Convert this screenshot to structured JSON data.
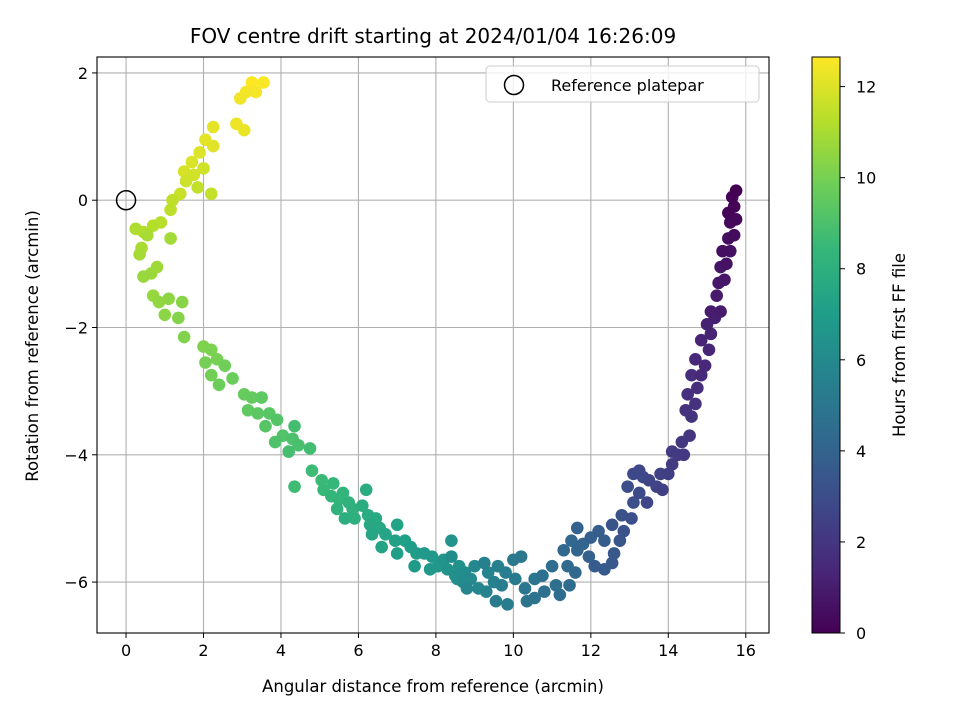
{
  "chart_data": {
    "type": "scatter",
    "title": "FOV centre drift starting at 2024/01/04 16:26:09",
    "xlabel": "Angular distance from reference (arcmin)",
    "ylabel": "Rotation from reference (arcmin)",
    "xlim": [
      -0.75,
      16.6
    ],
    "ylim": [
      -6.8,
      2.25
    ],
    "xticks": [
      0,
      2,
      4,
      6,
      8,
      10,
      12,
      14,
      16
    ],
    "yticks": [
      -6,
      -4,
      -2,
      0,
      2
    ],
    "grid": true,
    "legend": {
      "label": "Reference platepar",
      "placement": "top-right"
    },
    "reference_point": {
      "x": 0,
      "y": 0
    },
    "colorbar": {
      "label": "Hours from first FF file",
      "colormap": "viridis",
      "range": [
        0,
        12.65
      ],
      "ticks": [
        0,
        2,
        4,
        6,
        8,
        10,
        12
      ]
    },
    "colormap_stops": [
      "#440154",
      "#482878",
      "#3e4989",
      "#31688e",
      "#26828e",
      "#1f9e89",
      "#35b779",
      "#6ece58",
      "#b5de2b",
      "#fde725"
    ],
    "series": [
      {
        "columns": [
          "x",
          "y",
          "hours"
        ],
        "points": [
          [
            3.25,
            1.85
          ],
          [
            3.55,
            1.85
          ],
          [
            3.35,
            1.7
          ],
          [
            3.1,
            1.7
          ],
          [
            2.95,
            1.6
          ],
          [
            2.85,
            1.2
          ],
          [
            3.05,
            1.1
          ],
          [
            2.25,
            1.15
          ],
          [
            2.05,
            0.95
          ],
          [
            2.25,
            0.85
          ],
          [
            1.9,
            0.75
          ],
          [
            1.7,
            0.6
          ],
          [
            1.5,
            0.45
          ],
          [
            1.75,
            0.4
          ],
          [
            2.0,
            0.5
          ],
          [
            1.55,
            0.3
          ],
          [
            1.4,
            0.1
          ],
          [
            2.2,
            0.1
          ],
          [
            1.85,
            0.2
          ],
          [
            1.2,
            0.0
          ],
          [
            1.15,
            -0.15
          ],
          [
            0.9,
            -0.35
          ],
          [
            0.7,
            -0.4
          ],
          [
            0.45,
            -0.5
          ],
          [
            0.25,
            -0.45
          ],
          [
            0.4,
            -0.75
          ],
          [
            0.55,
            -0.55
          ],
          [
            0.35,
            -0.85
          ],
          [
            1.15,
            -0.6
          ],
          [
            0.8,
            -1.05
          ],
          [
            0.65,
            -1.15
          ],
          [
            0.45,
            -1.2
          ],
          [
            0.7,
            -1.5
          ],
          [
            0.85,
            -1.6
          ],
          [
            1.1,
            -1.55
          ],
          [
            1.0,
            -1.8
          ],
          [
            1.45,
            -1.6
          ],
          [
            1.35,
            -1.85
          ],
          [
            1.5,
            -2.15
          ],
          [
            2.0,
            -2.3
          ],
          [
            2.2,
            -2.35
          ],
          [
            2.35,
            -2.5
          ],
          [
            2.05,
            -2.55
          ],
          [
            2.2,
            -2.75
          ],
          [
            2.55,
            -2.6
          ],
          [
            2.4,
            -2.9
          ],
          [
            2.75,
            -2.8
          ],
          [
            3.05,
            -3.05
          ],
          [
            3.25,
            -3.1
          ],
          [
            3.15,
            -3.3
          ],
          [
            3.5,
            -3.1
          ],
          [
            3.4,
            -3.35
          ],
          [
            3.7,
            -3.35
          ],
          [
            3.6,
            -3.55
          ],
          [
            3.9,
            -3.45
          ],
          [
            4.05,
            -3.7
          ],
          [
            3.85,
            -3.8
          ],
          [
            4.3,
            -3.75
          ],
          [
            4.45,
            -3.85
          ],
          [
            4.2,
            -3.95
          ],
          [
            4.35,
            -3.55
          ],
          [
            4.75,
            -3.9
          ],
          [
            4.35,
            -4.5
          ],
          [
            4.8,
            -4.25
          ],
          [
            5.05,
            -4.4
          ],
          [
            5.1,
            -4.55
          ],
          [
            5.35,
            -4.45
          ],
          [
            5.3,
            -4.65
          ],
          [
            5.5,
            -4.7
          ],
          [
            5.6,
            -4.6
          ],
          [
            5.45,
            -4.85
          ],
          [
            5.75,
            -4.75
          ],
          [
            5.85,
            -4.85
          ],
          [
            5.9,
            -5.0
          ],
          [
            5.65,
            -5.0
          ],
          [
            6.1,
            -4.8
          ],
          [
            6.2,
            -4.55
          ],
          [
            6.25,
            -4.95
          ],
          [
            6.45,
            -5.0
          ],
          [
            6.3,
            -5.1
          ],
          [
            6.55,
            -5.15
          ],
          [
            6.35,
            -5.25
          ],
          [
            6.7,
            -5.25
          ],
          [
            6.6,
            -5.45
          ],
          [
            7.0,
            -5.1
          ],
          [
            6.95,
            -5.35
          ],
          [
            7.2,
            -5.35
          ],
          [
            7.0,
            -5.55
          ],
          [
            7.35,
            -5.45
          ],
          [
            7.5,
            -5.55
          ],
          [
            7.45,
            -5.75
          ],
          [
            7.7,
            -5.55
          ],
          [
            7.9,
            -5.6
          ],
          [
            7.85,
            -5.8
          ],
          [
            8.05,
            -5.75
          ],
          [
            8.2,
            -5.65
          ],
          [
            8.4,
            -5.35
          ],
          [
            8.3,
            -5.8
          ],
          [
            8.6,
            -5.75
          ],
          [
            8.55,
            -5.95
          ],
          [
            8.5,
            -5.9
          ],
          [
            8.4,
            -5.6
          ],
          [
            8.75,
            -5.85
          ],
          [
            8.7,
            -6.0
          ],
          [
            8.9,
            -5.95
          ],
          [
            9.0,
            -5.75
          ],
          [
            9.1,
            -6.1
          ],
          [
            8.8,
            -6.1
          ],
          [
            9.35,
            -5.85
          ],
          [
            9.3,
            -6.15
          ],
          [
            9.5,
            -6.0
          ],
          [
            9.25,
            -5.7
          ],
          [
            9.6,
            -5.75
          ],
          [
            9.8,
            -5.85
          ],
          [
            9.7,
            -6.05
          ],
          [
            9.85,
            -6.35
          ],
          [
            9.55,
            -6.3
          ],
          [
            10.05,
            -5.95
          ],
          [
            10.0,
            -5.65
          ],
          [
            10.2,
            -5.6
          ],
          [
            10.3,
            -6.1
          ],
          [
            10.55,
            -5.95
          ],
          [
            10.35,
            -6.3
          ],
          [
            10.55,
            -6.25
          ],
          [
            10.75,
            -5.9
          ],
          [
            10.8,
            -6.15
          ],
          [
            11.1,
            -6.05
          ],
          [
            11.0,
            -5.75
          ],
          [
            11.2,
            -6.2
          ],
          [
            11.45,
            -6.05
          ],
          [
            11.4,
            -5.75
          ],
          [
            11.6,
            -5.85
          ],
          [
            11.3,
            -5.5
          ],
          [
            11.5,
            -5.35
          ],
          [
            11.65,
            -5.5
          ],
          [
            11.8,
            -5.4
          ],
          [
            11.95,
            -5.6
          ],
          [
            11.65,
            -5.15
          ],
          [
            12.0,
            -5.3
          ],
          [
            12.2,
            -5.2
          ],
          [
            12.35,
            -5.35
          ],
          [
            12.1,
            -5.75
          ],
          [
            12.35,
            -5.8
          ],
          [
            12.55,
            -5.7
          ],
          [
            12.6,
            -5.55
          ],
          [
            12.75,
            -5.35
          ],
          [
            12.55,
            -5.1
          ],
          [
            12.85,
            -5.2
          ],
          [
            12.8,
            -4.95
          ],
          [
            13.05,
            -5.0
          ],
          [
            13.1,
            -4.75
          ],
          [
            12.95,
            -4.5
          ],
          [
            13.25,
            -4.6
          ],
          [
            13.35,
            -4.35
          ],
          [
            13.1,
            -4.3
          ],
          [
            13.25,
            -4.25
          ],
          [
            13.5,
            -4.4
          ],
          [
            13.45,
            -4.75
          ],
          [
            13.7,
            -4.5
          ],
          [
            13.8,
            -4.3
          ],
          [
            13.85,
            -4.55
          ],
          [
            14.0,
            -4.3
          ],
          [
            14.1,
            -4.15
          ],
          [
            14.1,
            -3.95
          ],
          [
            14.25,
            -4.0
          ],
          [
            14.4,
            -4.0
          ],
          [
            14.35,
            -3.8
          ],
          [
            14.55,
            -3.7
          ],
          [
            14.6,
            -3.4
          ],
          [
            14.45,
            -3.3
          ],
          [
            14.7,
            -3.2
          ],
          [
            14.5,
            -3.05
          ],
          [
            14.75,
            -2.95
          ],
          [
            14.6,
            -2.75
          ],
          [
            14.85,
            -2.75
          ],
          [
            14.7,
            -2.5
          ],
          [
            14.95,
            -2.6
          ],
          [
            15.05,
            -2.35
          ],
          [
            14.85,
            -2.2
          ],
          [
            15.1,
            -2.1
          ],
          [
            15.0,
            -1.95
          ],
          [
            15.2,
            -1.85
          ],
          [
            15.1,
            -1.75
          ],
          [
            15.35,
            -1.75
          ],
          [
            15.25,
            -1.5
          ],
          [
            15.3,
            -1.3
          ],
          [
            15.45,
            -1.25
          ],
          [
            15.35,
            -1.05
          ],
          [
            15.5,
            -1.0
          ],
          [
            15.6,
            -0.8
          ],
          [
            15.4,
            -0.8
          ],
          [
            15.55,
            -0.6
          ],
          [
            15.7,
            -0.55
          ],
          [
            15.6,
            -0.35
          ],
          [
            15.75,
            -0.3
          ],
          [
            15.55,
            -0.2
          ],
          [
            15.7,
            -0.1
          ],
          [
            15.65,
            0.05
          ],
          [
            15.75,
            0.15
          ]
        ]
      }
    ]
  }
}
